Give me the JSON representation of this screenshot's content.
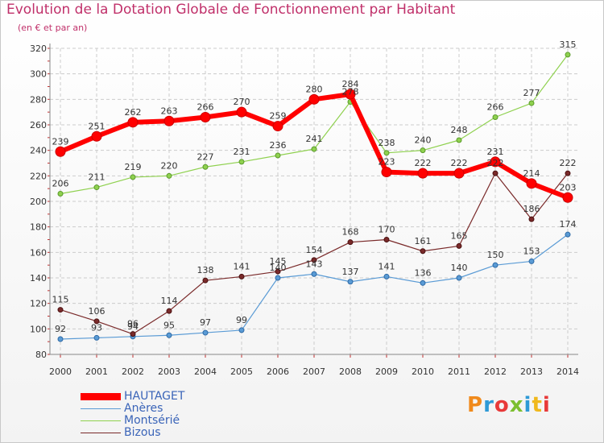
{
  "title": "Evolution de la Dotation Globale de Fonctionnement par Habitant",
  "subtitle": "(en € et par an)",
  "logo": "Proxiti",
  "chart_data": {
    "type": "line",
    "title": "Evolution de la Dotation Globale de Fonctionnement par Habitant",
    "subtitle": "(en € et par an)",
    "xlabel": "",
    "ylabel": "",
    "x": [
      "2000",
      "2001",
      "2002",
      "2003",
      "2004",
      "2005",
      "2006",
      "2007",
      "2008",
      "2009",
      "2010",
      "2011",
      "2012",
      "2013",
      "2014"
    ],
    "ylim": [
      80,
      320
    ],
    "yticks": [
      80,
      100,
      120,
      140,
      160,
      180,
      200,
      220,
      240,
      260,
      280,
      300,
      320
    ],
    "grid": true,
    "legend_position": "bottom-left",
    "series": [
      {
        "name": "HAUTAGET",
        "color": "#ff0000",
        "values": [
          239,
          251,
          262,
          263,
          266,
          270,
          259,
          280,
          284,
          223,
          222,
          222,
          231,
          214,
          203
        ],
        "labels": [
          "239",
          "251",
          "262",
          "263",
          "266",
          "270",
          "259",
          "280",
          "284",
          "223",
          "222",
          "222",
          "231",
          "214",
          "203"
        ]
      },
      {
        "name": "Anères",
        "color": "#5a9bd5",
        "values": [
          92,
          93,
          94,
          95,
          97,
          99,
          140,
          143,
          137,
          141,
          136,
          140,
          150,
          153,
          174
        ],
        "labels": [
          "92",
          "93",
          "94",
          "95",
          "97",
          "99",
          "140",
          "143",
          "137",
          "141",
          "136",
          "140",
          "150",
          "153",
          "174"
        ]
      },
      {
        "name": "Montsérié",
        "color": "#8fd14f",
        "values": [
          206,
          211,
          219,
          220,
          227,
          231,
          236,
          241,
          278,
          238,
          240,
          248,
          266,
          277,
          315
        ],
        "labels": [
          "206",
          "211",
          "219",
          "220",
          "227",
          "231",
          "236",
          "241",
          "278",
          "238",
          "240",
          "248",
          "266",
          "277",
          "315"
        ]
      },
      {
        "name": "Bizous",
        "color": "#7a2a2a",
        "values": [
          115,
          106,
          96,
          114,
          138,
          141,
          145,
          154,
          168,
          170,
          161,
          165,
          222,
          186,
          222
        ],
        "labels": [
          "115",
          "106",
          "96",
          "114",
          "138",
          "141",
          "145",
          "154",
          "168",
          "170",
          "161",
          "165",
          "222",
          "186",
          "222"
        ]
      }
    ]
  }
}
